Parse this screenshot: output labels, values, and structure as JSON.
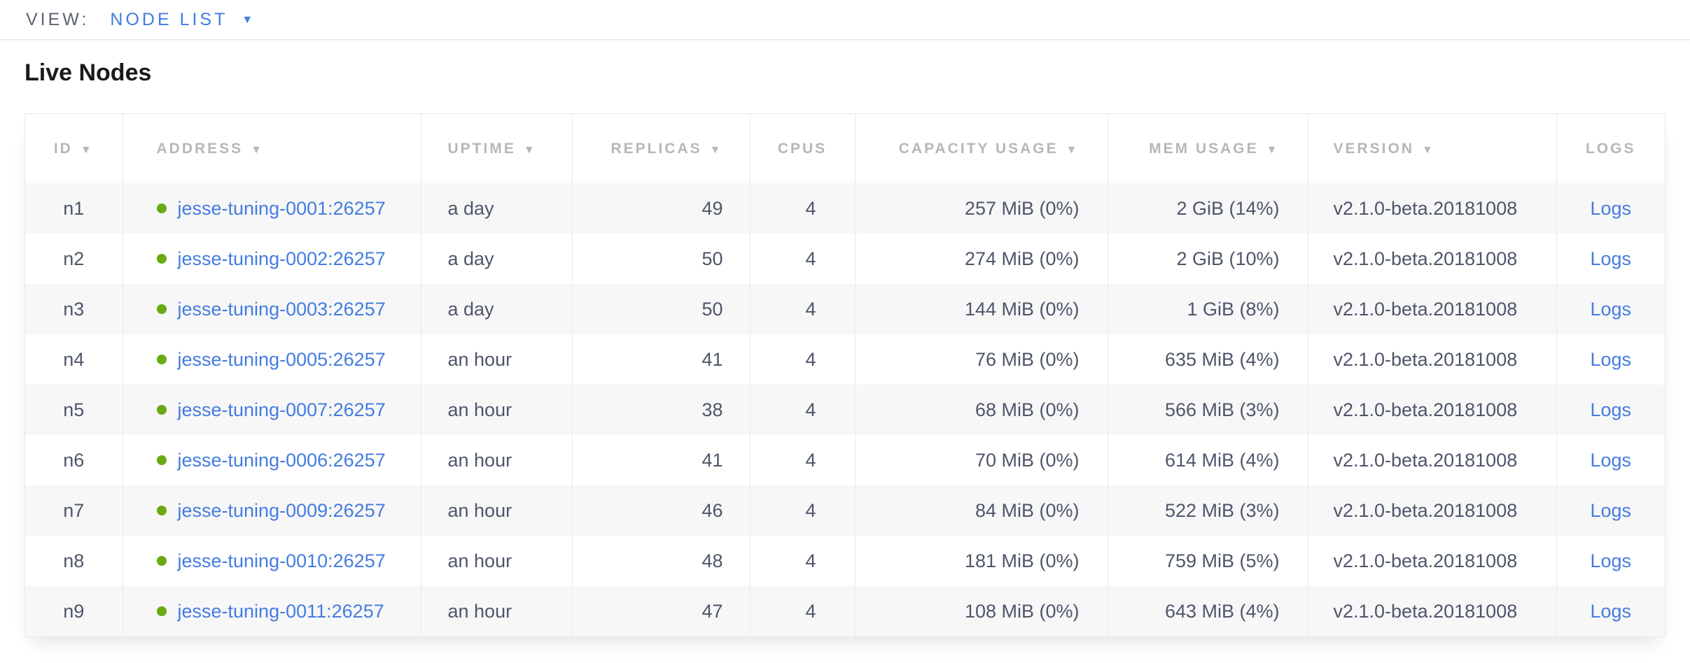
{
  "view_bar": {
    "label": "VIEW:",
    "selected_view": "NODE LIST",
    "dropdown_icon": "▼"
  },
  "heading": "Live Nodes",
  "icons": {
    "sort_desc": "▼",
    "node_status": "●"
  },
  "colors": {
    "link_blue": "#447ce0",
    "selector_blue": "#3f7ce2",
    "node_live_green": "#69ab11",
    "header_gray": "#b5b7bb",
    "cell_text": "#4e5669",
    "row_alt_background": "#f7f7f8"
  },
  "table": {
    "columns": [
      {
        "key": "id",
        "label": "ID",
        "sortable": true
      },
      {
        "key": "address",
        "label": "ADDRESS",
        "sortable": true
      },
      {
        "key": "uptime",
        "label": "UPTIME",
        "sortable": true
      },
      {
        "key": "replicas",
        "label": "REPLICAS",
        "sortable": true
      },
      {
        "key": "cpus",
        "label": "CPUS",
        "sortable": false
      },
      {
        "key": "capacity",
        "label": "CAPACITY USAGE",
        "sortable": true
      },
      {
        "key": "mem",
        "label": "MEM USAGE",
        "sortable": true
      },
      {
        "key": "version",
        "label": "VERSION",
        "sortable": true
      },
      {
        "key": "logs",
        "label": "LOGS",
        "sortable": false
      }
    ],
    "rows": [
      {
        "id": "n1",
        "status": "live",
        "address": "jesse-tuning-0001:26257",
        "uptime": "a day",
        "replicas": "49",
        "cpus": "4",
        "capacity": "257 MiB (0%)",
        "mem": "2 GiB (14%)",
        "version": "v2.1.0-beta.20181008",
        "logs": "Logs"
      },
      {
        "id": "n2",
        "status": "live",
        "address": "jesse-tuning-0002:26257",
        "uptime": "a day",
        "replicas": "50",
        "cpus": "4",
        "capacity": "274 MiB (0%)",
        "mem": "2 GiB (10%)",
        "version": "v2.1.0-beta.20181008",
        "logs": "Logs"
      },
      {
        "id": "n3",
        "status": "live",
        "address": "jesse-tuning-0003:26257",
        "uptime": "a day",
        "replicas": "50",
        "cpus": "4",
        "capacity": "144 MiB (0%)",
        "mem": "1 GiB (8%)",
        "version": "v2.1.0-beta.20181008",
        "logs": "Logs"
      },
      {
        "id": "n4",
        "status": "live",
        "address": "jesse-tuning-0005:26257",
        "uptime": "an hour",
        "replicas": "41",
        "cpus": "4",
        "capacity": "76 MiB (0%)",
        "mem": "635 MiB (4%)",
        "version": "v2.1.0-beta.20181008",
        "logs": "Logs"
      },
      {
        "id": "n5",
        "status": "live",
        "address": "jesse-tuning-0007:26257",
        "uptime": "an hour",
        "replicas": "38",
        "cpus": "4",
        "capacity": "68 MiB (0%)",
        "mem": "566 MiB (3%)",
        "version": "v2.1.0-beta.20181008",
        "logs": "Logs"
      },
      {
        "id": "n6",
        "status": "live",
        "address": "jesse-tuning-0006:26257",
        "uptime": "an hour",
        "replicas": "41",
        "cpus": "4",
        "capacity": "70 MiB (0%)",
        "mem": "614 MiB (4%)",
        "version": "v2.1.0-beta.20181008",
        "logs": "Logs"
      },
      {
        "id": "n7",
        "status": "live",
        "address": "jesse-tuning-0009:26257",
        "uptime": "an hour",
        "replicas": "46",
        "cpus": "4",
        "capacity": "84 MiB (0%)",
        "mem": "522 MiB (3%)",
        "version": "v2.1.0-beta.20181008",
        "logs": "Logs"
      },
      {
        "id": "n8",
        "status": "live",
        "address": "jesse-tuning-0010:26257",
        "uptime": "an hour",
        "replicas": "48",
        "cpus": "4",
        "capacity": "181 MiB (0%)",
        "mem": "759 MiB (5%)",
        "version": "v2.1.0-beta.20181008",
        "logs": "Logs"
      },
      {
        "id": "n9",
        "status": "live",
        "address": "jesse-tuning-0011:26257",
        "uptime": "an hour",
        "replicas": "47",
        "cpus": "4",
        "capacity": "108 MiB (0%)",
        "mem": "643 MiB (4%)",
        "version": "v2.1.0-beta.20181008",
        "logs": "Logs"
      }
    ]
  }
}
